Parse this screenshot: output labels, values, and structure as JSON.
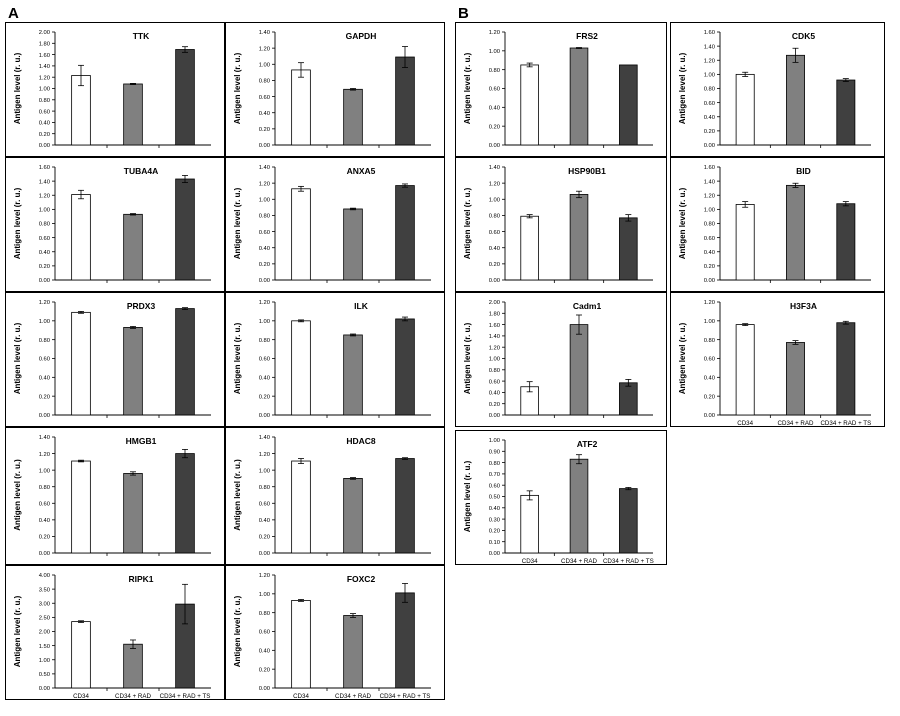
{
  "panels": [
    {
      "letter": "A"
    },
    {
      "letter": "B"
    }
  ],
  "styles": {
    "bar_colors": [
      "#ffffff",
      "#808080",
      "#404040"
    ],
    "axis_color": "#000000",
    "errorbar_color": "#000000"
  },
  "chart_data": [
    {
      "type": "bar",
      "title": "TTK",
      "ylabel": "Antigen level (r. u.)",
      "categories": [
        "CD34",
        "CD34 + RAD",
        "CD34 + RAD + TS"
      ],
      "values": [
        1.23,
        1.08,
        1.69
      ],
      "errors": [
        0.18,
        0.01,
        0.05
      ],
      "ylim": [
        0,
        2.0
      ],
      "ystep": 0.2,
      "yticks": [
        "0.00",
        "0.20",
        "0.40",
        "0.60",
        "0.80",
        "1.00",
        "1.20",
        "1.40",
        "1.60",
        "1.80",
        "2.00"
      ]
    },
    {
      "type": "bar",
      "title": "GAPDH",
      "ylabel": "Antigen level (r. u.)",
      "categories": [
        "CD34",
        "CD34 + RAD",
        "CD34 + RAD + TS"
      ],
      "values": [
        0.93,
        0.69,
        1.09
      ],
      "errors": [
        0.09,
        0.01,
        0.13
      ],
      "ylim": [
        0,
        1.4
      ],
      "ystep": 0.2,
      "yticks": [
        "0.00",
        "0.20",
        "0.40",
        "0.60",
        "0.80",
        "1.00",
        "1.20",
        "1.40"
      ]
    },
    {
      "type": "bar",
      "title": "TUBA4A",
      "ylabel": "Antigen level (r. u.)",
      "categories": [
        "CD34",
        "CD34 + RAD",
        "CD34 + RAD + TS"
      ],
      "values": [
        1.21,
        0.93,
        1.43
      ],
      "errors": [
        0.06,
        0.01,
        0.05
      ],
      "ylim": [
        0,
        1.6
      ],
      "ystep": 0.2,
      "yticks": [
        "0.00",
        "0.20",
        "0.40",
        "0.60",
        "0.80",
        "1.00",
        "1.20",
        "1.40",
        "1.60"
      ]
    },
    {
      "type": "bar",
      "title": "ANXA5",
      "ylabel": "Antigen level (r. u.)",
      "categories": [
        "CD34",
        "CD34 + RAD",
        "CD34 + RAD + TS"
      ],
      "values": [
        1.13,
        0.88,
        1.17
      ],
      "errors": [
        0.03,
        0.01,
        0.02
      ],
      "ylim": [
        0,
        1.4
      ],
      "ystep": 0.2,
      "yticks": [
        "0.00",
        "0.20",
        "0.40",
        "0.60",
        "0.80",
        "1.00",
        "1.20",
        "1.40"
      ]
    },
    {
      "type": "bar",
      "title": "PRDX3",
      "ylabel": "Antigen level (r. u.)",
      "categories": [
        "CD34",
        "CD34 + RAD",
        "CD34 + RAD + TS"
      ],
      "values": [
        1.09,
        0.93,
        1.13
      ],
      "errors": [
        0.01,
        0.01,
        0.01
      ],
      "ylim": [
        0,
        1.2
      ],
      "ystep": 0.2,
      "yticks": [
        "0.00",
        "0.20",
        "0.40",
        "0.60",
        "0.80",
        "1.00",
        "1.20"
      ]
    },
    {
      "type": "bar",
      "title": "ILK",
      "ylabel": "Antigen level (r. u.)",
      "categories": [
        "CD34",
        "CD34 + RAD",
        "CD34 + RAD + TS"
      ],
      "values": [
        1.0,
        0.85,
        1.02
      ],
      "errors": [
        0.01,
        0.01,
        0.02
      ],
      "ylim": [
        0,
        1.2
      ],
      "ystep": 0.2,
      "yticks": [
        "0.00",
        "0.20",
        "0.40",
        "0.60",
        "0.80",
        "1.00",
        "1.20"
      ]
    },
    {
      "type": "bar",
      "title": "HMGB1",
      "ylabel": "Antigen level (r. u.)",
      "categories": [
        "CD34",
        "CD34 + RAD",
        "CD34 + RAD + TS"
      ],
      "values": [
        1.11,
        0.96,
        1.2
      ],
      "errors": [
        0.01,
        0.02,
        0.05
      ],
      "ylim": [
        0,
        1.4
      ],
      "ystep": 0.2,
      "yticks": [
        "0.00",
        "0.20",
        "0.40",
        "0.60",
        "0.80",
        "1.00",
        "1.20",
        "1.40"
      ]
    },
    {
      "type": "bar",
      "title": "HDAC8",
      "ylabel": "Antigen level (r. u.)",
      "categories": [
        "CD34",
        "CD34 + RAD",
        "CD34 + RAD + TS"
      ],
      "values": [
        1.11,
        0.9,
        1.14
      ],
      "errors": [
        0.03,
        0.01,
        0.01
      ],
      "ylim": [
        0,
        1.4
      ],
      "ystep": 0.2,
      "yticks": [
        "0.00",
        "0.20",
        "0.40",
        "0.60",
        "0.80",
        "1.00",
        "1.20",
        "1.40"
      ]
    },
    {
      "type": "bar",
      "title": "RIPK1",
      "ylabel": "Antigen level (r. u.)",
      "categories": [
        "CD34",
        "CD34 + RAD",
        "CD34 + RAD + TS"
      ],
      "values": [
        2.35,
        1.55,
        2.97
      ],
      "errors": [
        0.03,
        0.15,
        0.7
      ],
      "ylim": [
        0,
        4.0
      ],
      "ystep": 0.5,
      "yticks": [
        "0.00",
        "0.50",
        "1.00",
        "1.50",
        "2.00",
        "2.50",
        "3.00",
        "3.50",
        "4.00"
      ]
    },
    {
      "type": "bar",
      "title": "FOXC2",
      "ylabel": "Antigen level (r. u.)",
      "categories": [
        "CD34",
        "CD34 + RAD",
        "CD34 + RAD + TS"
      ],
      "values": [
        0.93,
        0.77,
        1.01
      ],
      "errors": [
        0.01,
        0.02,
        0.1
      ],
      "ylim": [
        0,
        1.2
      ],
      "ystep": 0.2,
      "yticks": [
        "0.00",
        "0.20",
        "0.40",
        "0.60",
        "0.80",
        "1.00",
        "1.20"
      ]
    },
    {
      "type": "bar",
      "title": "FRS2",
      "ylabel": "Antigen level (r. u.)",
      "categories": [
        "CD34",
        "CD34 + RAD",
        "CD34 + RAD + TS"
      ],
      "values": [
        0.85,
        1.03,
        0.85
      ],
      "errors": [
        0.02,
        0.005,
        0.0
      ],
      "ylim": [
        0,
        1.2
      ],
      "ystep": 0.2,
      "yticks": [
        "0.00",
        "0.20",
        "0.40",
        "0.60",
        "0.80",
        "1.00",
        "1.20"
      ]
    },
    {
      "type": "bar",
      "title": "CDK5",
      "ylabel": "Antigen level (r. u.)",
      "categories": [
        "CD34",
        "CD34 + RAD",
        "CD34 + RAD + TS"
      ],
      "values": [
        1.0,
        1.27,
        0.92
      ],
      "errors": [
        0.03,
        0.1,
        0.02
      ],
      "ylim": [
        0,
        1.6
      ],
      "ystep": 0.2,
      "yticks": [
        "0.00",
        "0.20",
        "0.40",
        "0.60",
        "0.80",
        "1.00",
        "1.20",
        "1.40",
        "1.60"
      ]
    },
    {
      "type": "bar",
      "title": "HSP90B1",
      "ylabel": "Antigen level (r. u.)",
      "categories": [
        "CD34",
        "CD34 + RAD",
        "CD34 + RAD + TS"
      ],
      "values": [
        0.79,
        1.06,
        0.77
      ],
      "errors": [
        0.02,
        0.04,
        0.04
      ],
      "ylim": [
        0,
        1.4
      ],
      "ystep": 0.2,
      "yticks": [
        "0.00",
        "0.20",
        "0.40",
        "0.60",
        "0.80",
        "1.00",
        "1.20",
        "1.40"
      ]
    },
    {
      "type": "bar",
      "title": "BID",
      "ylabel": "Antigen level (r. u.)",
      "categories": [
        "CD34",
        "CD34 + RAD",
        "CD34 + RAD + TS"
      ],
      "values": [
        1.07,
        1.34,
        1.08
      ],
      "errors": [
        0.04,
        0.03,
        0.03
      ],
      "ylim": [
        0,
        1.6
      ],
      "ystep": 0.2,
      "yticks": [
        "0.00",
        "0.20",
        "0.40",
        "0.60",
        "0.80",
        "1.00",
        "1.20",
        "1.40",
        "1.60"
      ]
    },
    {
      "type": "bar",
      "title": "Cadm1",
      "ylabel": "Antigen level (r. u.)",
      "categories": [
        "CD34",
        "CD34 + RAD",
        "CD34 + RAD + TS"
      ],
      "values": [
        0.5,
        1.6,
        0.57
      ],
      "errors": [
        0.09,
        0.17,
        0.06
      ],
      "ylim": [
        0,
        2.0
      ],
      "ystep": 0.2,
      "yticks": [
        "0.00",
        "0.20",
        "0.40",
        "0.60",
        "0.80",
        "1.00",
        "1.20",
        "1.40",
        "1.60",
        "1.80",
        "2.00"
      ]
    },
    {
      "type": "bar",
      "title": "H3F3A",
      "ylabel": "Antigen level (r. u.)",
      "categories": [
        "CD34",
        "CD34 + RAD",
        "CD34 + RAD + TS"
      ],
      "values": [
        0.96,
        0.77,
        0.98
      ],
      "errors": [
        0.01,
        0.02,
        0.015
      ],
      "ylim": [
        0,
        1.2
      ],
      "ystep": 0.2,
      "yticks": [
        "0.00",
        "0.20",
        "0.40",
        "0.60",
        "0.80",
        "1.00",
        "1.20"
      ]
    },
    {
      "type": "bar",
      "title": "ATF2",
      "ylabel": "Antigen level (r. u.)",
      "categories": [
        "CD34",
        "CD34 + RAD",
        "CD34 + RAD + TS"
      ],
      "values": [
        0.51,
        0.83,
        0.57
      ],
      "errors": [
        0.04,
        0.04,
        0.01
      ],
      "ylim": [
        0,
        1.0
      ],
      "ystep": 0.1,
      "yticks": [
        "0.00",
        "0.10",
        "0.20",
        "0.30",
        "0.40",
        "0.50",
        "0.60",
        "0.70",
        "0.80",
        "0.90",
        "1.00"
      ]
    }
  ]
}
